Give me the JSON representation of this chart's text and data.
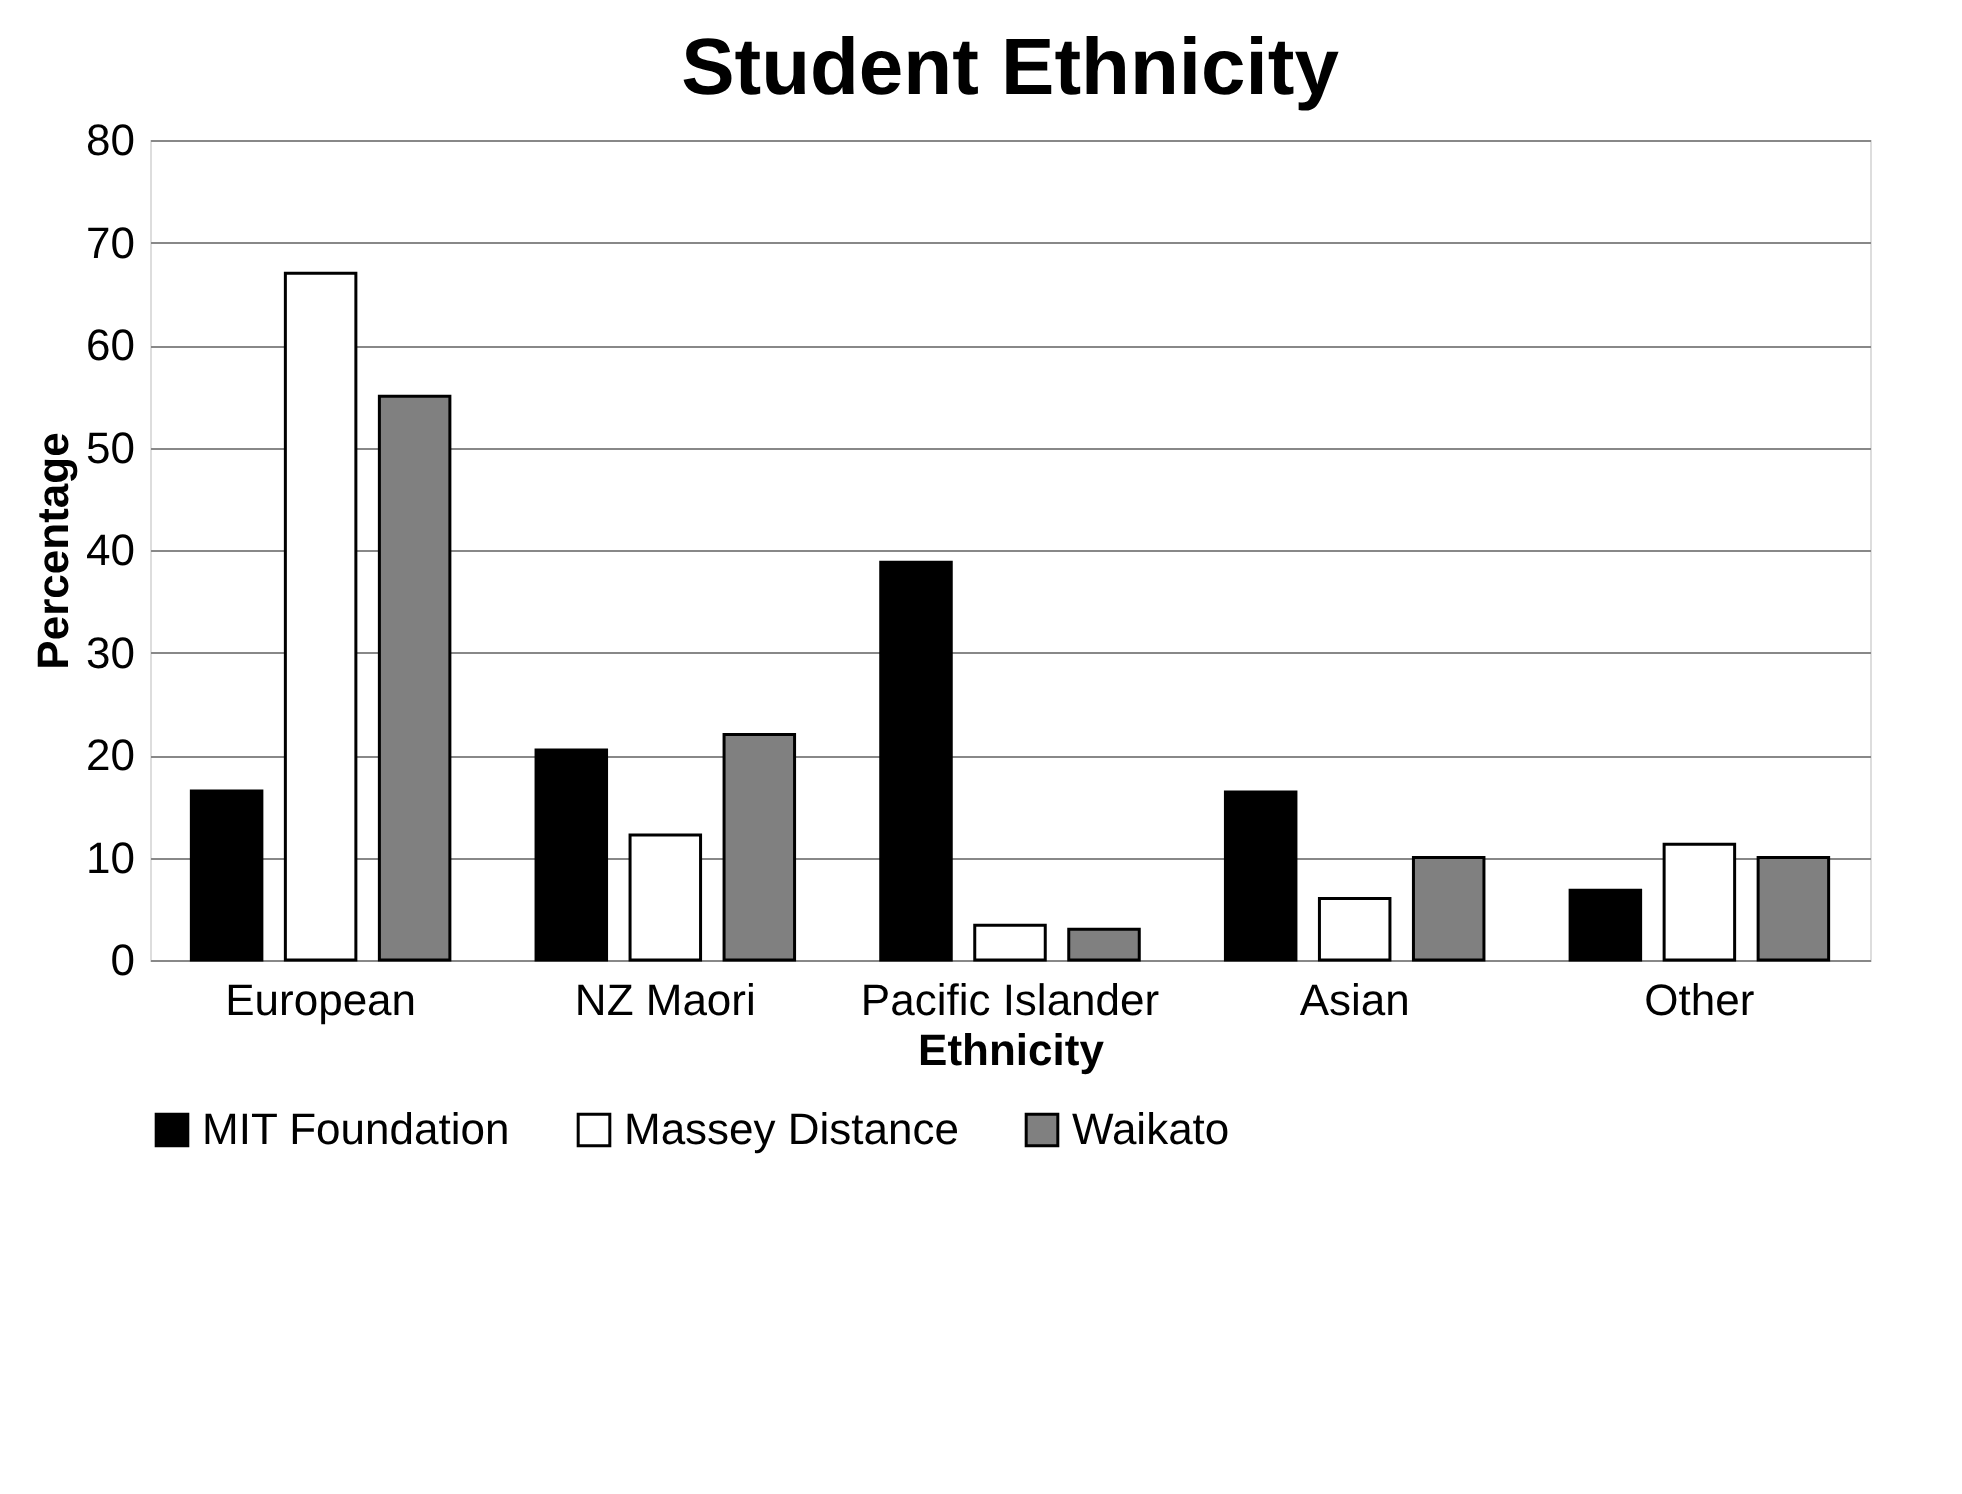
{
  "chart_data": {
    "type": "bar",
    "title": "Student Ethnicity",
    "xlabel": "Ethnicity",
    "ylabel": "Percentage",
    "categories": [
      "European",
      "NZ Maori",
      "Pacific Islander",
      "Asian",
      "Other"
    ],
    "series": [
      {
        "name": "MIT Foundation",
        "color": "#000000",
        "values": [
          16.5,
          20.5,
          38.8,
          16.4,
          6.8
        ]
      },
      {
        "name": "Massey Distance",
        "color": "#ffffff",
        "values": [
          67,
          12.2,
          3.4,
          6,
          11.3
        ]
      },
      {
        "name": "Waikato",
        "color": "#808080",
        "values": [
          55,
          22,
          3,
          10,
          10
        ]
      }
    ],
    "ylim": [
      0,
      80
    ],
    "yticks": [
      0,
      10,
      20,
      30,
      40,
      50,
      60,
      70,
      80
    ],
    "grid": "y",
    "legend": "bottom"
  }
}
